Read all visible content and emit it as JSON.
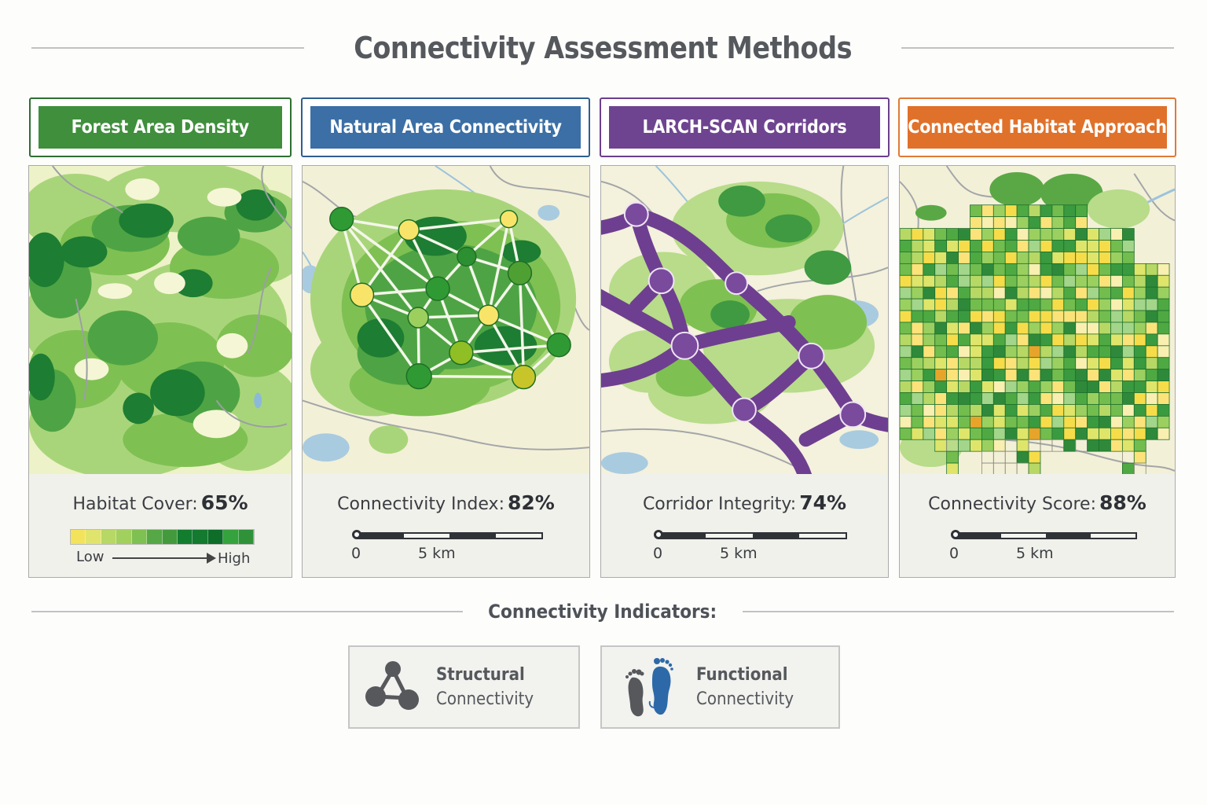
{
  "title": "Connectivity Assessment Methods",
  "colors": {
    "green": "#3f8f3c",
    "blue": "#3b6fa5",
    "purple": "#6e4490",
    "orange": "#e0712a"
  },
  "methods": [
    {
      "title": "Forest Area Density",
      "accent": "#3f8f3c",
      "border": "#2e6f31",
      "map_type": "density-map",
      "metric_label": "Habitat Cover:",
      "metric_value": "65%",
      "legend": {
        "low": "Low",
        "high": "High",
        "colors": [
          "#f3e25c",
          "#e0e46c",
          "#b7d865",
          "#a2d05e",
          "#7fc052",
          "#55a845",
          "#439a3d",
          "#137d2f",
          "#137a2f",
          "#0d6d29",
          "#35a33d",
          "#2f9239"
        ]
      }
    },
    {
      "title": "Natural Area Connectivity",
      "accent": "#3b6fa5",
      "border": "#2f5f8e",
      "map_type": "network-map",
      "metric_label": "Connectivity Index:",
      "metric_value": "82%",
      "scale": {
        "start": "0",
        "mid": "5 km"
      }
    },
    {
      "title": "LARCH-SCAN Corridors",
      "accent": "#6e4490",
      "border": "#6b3f8c",
      "map_type": "corridor-map",
      "metric_label": "Corridor Integrity:",
      "metric_value": "74%",
      "scale": {
        "start": "0",
        "mid": "5 km"
      }
    },
    {
      "title": "Connected Habitat Approach",
      "accent": "#e0712a",
      "border": "#e07a35",
      "map_type": "grid-map",
      "metric_label": "Connectivity Score:",
      "metric_value": "88%",
      "scale": {
        "start": "0",
        "mid": "5 km"
      }
    }
  ],
  "indicators": {
    "heading": "Connectivity Indicators:",
    "items": [
      {
        "line1": "Structural",
        "line2": "Connectivity",
        "icon": "network-triangle-icon"
      },
      {
        "line1": "Functional",
        "line2": "Connectivity",
        "icon": "footprints-icon"
      }
    ]
  }
}
